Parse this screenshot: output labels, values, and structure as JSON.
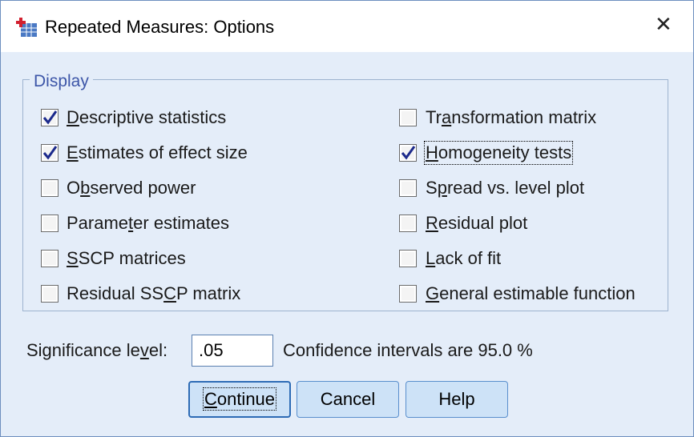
{
  "window": {
    "title": "Repeated Measures: Options",
    "close": "✕"
  },
  "display": {
    "legend": "Display",
    "left": [
      {
        "label": [
          {
            "text": "D",
            "u": true
          },
          {
            "text": "escriptive statistics"
          }
        ],
        "checked": true
      },
      {
        "label": [
          {
            "text": "E",
            "u": true
          },
          {
            "text": "stimates of effect size"
          }
        ],
        "checked": true
      },
      {
        "label": [
          {
            "text": "O"
          },
          {
            "text": "b",
            "u": true
          },
          {
            "text": "served power"
          }
        ],
        "checked": false
      },
      {
        "label": [
          {
            "text": "Parame"
          },
          {
            "text": "t",
            "u": true
          },
          {
            "text": "er estimates"
          }
        ],
        "checked": false
      },
      {
        "label": [
          {
            "text": "S",
            "u": true
          },
          {
            "text": "SCP matrices"
          }
        ],
        "checked": false
      },
      {
        "label": [
          {
            "text": "Residual SS"
          },
          {
            "text": "C",
            "u": true
          },
          {
            "text": "P matrix"
          }
        ],
        "checked": false
      }
    ],
    "right": [
      {
        "label": [
          {
            "text": "Tr"
          },
          {
            "text": "a",
            "u": true
          },
          {
            "text": "nsformation matrix"
          }
        ],
        "checked": false
      },
      {
        "label": [
          {
            "text": "H",
            "u": true
          },
          {
            "text": "omogeneity tests"
          }
        ],
        "checked": true,
        "focused": true
      },
      {
        "label": [
          {
            "text": "S"
          },
          {
            "text": "p",
            "u": true
          },
          {
            "text": "read vs. level plot"
          }
        ],
        "checked": false
      },
      {
        "label": [
          {
            "text": "R",
            "u": true
          },
          {
            "text": "esidual plot"
          }
        ],
        "checked": false
      },
      {
        "label": [
          {
            "text": "L",
            "u": true
          },
          {
            "text": "ack of fit"
          }
        ],
        "checked": false
      },
      {
        "label": [
          {
            "text": "G",
            "u": true
          },
          {
            "text": "eneral estimable function"
          }
        ],
        "checked": false
      }
    ]
  },
  "significance": {
    "label": [
      {
        "text": "Significance le"
      },
      {
        "text": "v",
        "u": true
      },
      {
        "text": "el:"
      }
    ],
    "value": ".05",
    "note": "Confidence intervals are 95.0 %"
  },
  "buttons": [
    {
      "label": [
        {
          "text": "C",
          "u": true
        },
        {
          "text": "ontinue"
        }
      ],
      "default": true
    },
    {
      "label": [
        {
          "text": "Cancel"
        }
      ]
    },
    {
      "label": [
        {
          "text": "Help"
        }
      ]
    }
  ]
}
